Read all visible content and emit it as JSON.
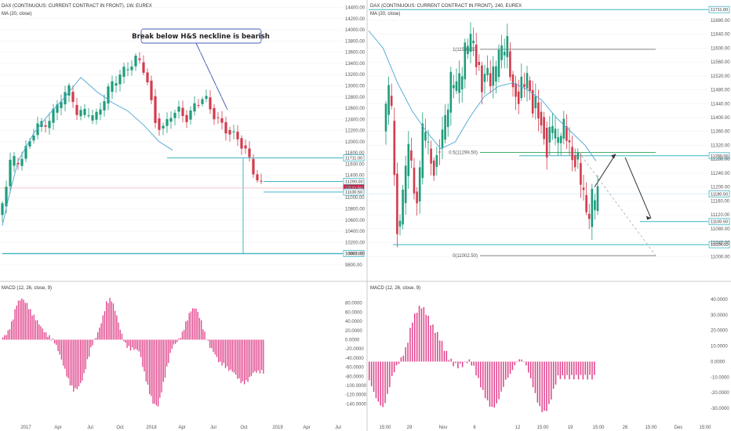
{
  "colors": {
    "up": "#1f9c7c",
    "down": "#d23b4c",
    "ma": "#4da6d6",
    "level": "#3fb5c5",
    "macd": "#e0428a",
    "fib_green": "#2aa35a",
    "fib_gray": "#777777",
    "price_tag": "#d6244a"
  },
  "chart_data": [
    {
      "type": "candlestick",
      "title": "DAX (CONTINUOUS: CURRENT CONTRACT IN FRONT), 1W, EUREX",
      "indicator": "MA (20, close)",
      "ylim": [
        9700,
        14450
      ],
      "y_ticks": [
        9800,
        10000,
        10200,
        10400,
        10600,
        10800,
        11000,
        11200,
        11400,
        11600,
        11800,
        12000,
        12200,
        12400,
        12600,
        12800,
        13000,
        13200,
        13400,
        13600,
        13800,
        14000,
        14200,
        14400
      ],
      "x_ticks": [
        "2017",
        "Apr",
        "Jul",
        "Oct",
        "2018",
        "Apr",
        "Jul",
        "Oct",
        "2019",
        "Apr",
        "Jul"
      ],
      "price_tags": [
        {
          "label": "11711.00",
          "value": 11711,
          "style": "level"
        },
        {
          "label": "11290.00",
          "value": 11290,
          "style": "level"
        },
        {
          "label": "11172.00",
          "value": 11172,
          "style": "price"
        },
        {
          "label": "11100.50",
          "value": 11100.5,
          "style": "level"
        },
        {
          "label": "10000.00",
          "value": 10000,
          "style": "level"
        }
      ],
      "annotation": "Break below H&S neckline is bearish",
      "anchors": [
        [
          10200,
          11300,
          11350,
          11800,
          12150,
          12100,
          12250,
          12450,
          12700,
          12500,
          12200,
          12150,
          12500,
          12650,
          13000,
          13150,
          13400,
          13300,
          13100,
          12300,
          12250,
          12600,
          12500,
          12500,
          12800,
          12700,
          12400,
          12350,
          12150,
          12050,
          11500,
          11200
        ],
        [
          10900,
          11700,
          11650,
          11900,
          12300,
          12300,
          12500,
          12800,
          12950,
          12450,
          12600,
          12400,
          12750,
          13050,
          13200,
          13350,
          13500,
          13250,
          12400,
          12200,
          12500,
          12550,
          12400,
          12700,
          12800,
          12500,
          12300,
          12150,
          12050,
          11800,
          11400,
          11150
        ]
      ],
      "ma": [
        [
          0,
          10500
        ],
        [
          8,
          11000
        ],
        [
          20,
          11650
        ],
        [
          40,
          12150
        ],
        [
          60,
          12500
        ],
        [
          80,
          12800
        ],
        [
          100,
          13150
        ],
        [
          120,
          12900
        ],
        [
          140,
          12700
        ],
        [
          160,
          12550
        ],
        [
          180,
          12300
        ],
        [
          200,
          12000
        ],
        [
          217,
          11850
        ]
      ]
    },
    {
      "type": "histogram",
      "title": "MACD (12, 26, close, 9)",
      "ylim": [
        -170,
        105
      ],
      "y_ticks": [
        80,
        60,
        40,
        20,
        0,
        -20,
        -40,
        -60,
        -80,
        -100,
        -120,
        -140
      ],
      "y_tick_labels": [
        "80.0000",
        "60.0000",
        "40.0000",
        "20.0000",
        "0.0000",
        "-20.0000",
        "-40.0000",
        "-60.0000",
        "-80.0000",
        "-100.0000",
        "-120.0000",
        "-140.0000"
      ],
      "x_ticks": [
        "2017",
        "Apr",
        "Jul",
        "Oct",
        "2018",
        "Apr",
        "Jul",
        "Oct",
        "2019",
        "Apr",
        "Jul"
      ],
      "anchors": [
        [
          0,
          5
        ],
        [
          6,
          15
        ],
        [
          12,
          40
        ],
        [
          18,
          80
        ],
        [
          24,
          90
        ],
        [
          30,
          80
        ],
        [
          36,
          60
        ],
        [
          42,
          45
        ],
        [
          48,
          30
        ],
        [
          54,
          15
        ],
        [
          60,
          5
        ],
        [
          66,
          -5
        ],
        [
          72,
          -30
        ],
        [
          78,
          -60
        ],
        [
          84,
          -90
        ],
        [
          90,
          -110
        ],
        [
          96,
          -105
        ],
        [
          102,
          -85
        ],
        [
          108,
          -45
        ],
        [
          114,
          -10
        ],
        [
          120,
          10
        ],
        [
          126,
          40
        ],
        [
          132,
          80
        ],
        [
          138,
          90
        ],
        [
          144,
          60
        ],
        [
          150,
          20
        ],
        [
          156,
          -10
        ],
        [
          162,
          -20
        ],
        [
          168,
          -20
        ],
        [
          174,
          -25
        ],
        [
          180,
          -70
        ],
        [
          186,
          -110
        ],
        [
          192,
          -140
        ],
        [
          198,
          -145
        ],
        [
          204,
          -100
        ],
        [
          210,
          -55
        ],
        [
          216,
          -15
        ],
        [
          222,
          -5
        ],
        [
          228,
          10
        ],
        [
          234,
          40
        ],
        [
          240,
          65
        ],
        [
          246,
          70
        ],
        [
          252,
          45
        ],
        [
          258,
          10
        ],
        [
          264,
          -15
        ],
        [
          270,
          -30
        ],
        [
          276,
          -50
        ],
        [
          282,
          -55
        ],
        [
          288,
          -65
        ],
        [
          294,
          -70
        ],
        [
          300,
          -85
        ],
        [
          306,
          -95
        ],
        [
          312,
          -90
        ],
        [
          320,
          -70
        ]
      ]
    },
    {
      "type": "candlestick",
      "title": "DAX (CONTINUOUS: CURRENT CONTRACT IN FRONT), 240, EUREX",
      "indicator": "MA (20, close)",
      "ylim": [
        10960,
        11725
      ],
      "y_ticks": [
        11000,
        11040,
        11080,
        11120,
        11160,
        11200,
        11240,
        11280,
        11320,
        11360,
        11400,
        11440,
        11480,
        11520,
        11560,
        11600,
        11640,
        11680
      ],
      "x_ticks": [
        "15:00",
        "29",
        "Nov",
        "6",
        "12",
        "15:00",
        "19",
        "15:00",
        "26",
        "15:00",
        "Dec",
        "15:00"
      ],
      "price_tags": [
        {
          "label": "11711.00",
          "value": 11711,
          "style": "level"
        },
        {
          "label": "11290.00",
          "value": 11290,
          "style": "level"
        },
        {
          "label": "11180.50",
          "value": 11180.5,
          "style": "level"
        },
        {
          "label": "11100.50",
          "value": 11100.5,
          "style": "level"
        },
        {
          "label": "11034.00",
          "value": 11034,
          "style": "level"
        }
      ],
      "fib_levels": [
        {
          "label": "1(11596.50)",
          "value": 11596.5
        },
        {
          "label": "0.5(11299.50)",
          "value": 11299.5
        },
        {
          "label": "0(11002.50)",
          "value": 11002.5
        }
      ],
      "anchors": [
        [
          11280,
          11450,
          11300,
          11060,
          11120,
          11290,
          11200,
          11150,
          11310,
          11290,
          11280,
          11330,
          11300,
          11420,
          11460,
          11420,
          11540,
          11580,
          11600,
          11550,
          11520,
          11510,
          11450,
          11540,
          11560,
          11540,
          11500,
          11470,
          11480,
          11490,
          11420,
          11440,
          11400,
          11340,
          11280,
          11320,
          11360,
          11300,
          11310,
          11200,
          11150,
          11050,
          11100
        ],
        [
          11440,
          11510,
          11070,
          11110,
          11300,
          11300,
          11100,
          11350,
          11380,
          11250,
          11260,
          11350,
          11410,
          11520,
          11500,
          11530,
          11620,
          11640,
          11560,
          11490,
          11540,
          11500,
          11580,
          11600,
          11620,
          11490,
          11440,
          11500,
          11520,
          11430,
          11440,
          11350,
          11300,
          11400,
          11330,
          11380,
          11350,
          11270,
          11280,
          11200,
          11100,
          11180,
          11190
        ]
      ],
      "ma": [
        [
          0,
          11650
        ],
        [
          20,
          11600
        ],
        [
          40,
          11500
        ],
        [
          60,
          11420
        ],
        [
          80,
          11360
        ],
        [
          100,
          11310
        ],
        [
          120,
          11330
        ],
        [
          140,
          11400
        ],
        [
          160,
          11460
        ],
        [
          180,
          11490
        ],
        [
          200,
          11500
        ],
        [
          220,
          11480
        ],
        [
          240,
          11450
        ],
        [
          260,
          11400
        ],
        [
          280,
          11360
        ],
        [
          300,
          11320
        ],
        [
          315,
          11275
        ]
      ]
    },
    {
      "type": "histogram",
      "title": "MACD (12, 26, close, 9)",
      "ylim": [
        -36,
        45
      ],
      "y_ticks": [
        40,
        30,
        20,
        10,
        0,
        -10,
        -20,
        -30
      ],
      "y_tick_labels": [
        "40.0000",
        "30.0000",
        "20.0000",
        "10.0000",
        "0.0000",
        "-10.0000",
        "-20.0000",
        "-30.0000"
      ],
      "x_ticks": [
        "15:00",
        "29",
        "Nov",
        "6",
        "12",
        "15:00",
        "19",
        "15:00",
        "26",
        "15:00",
        "Dec",
        "15:00"
      ],
      "anchors": [
        [
          0,
          -12
        ],
        [
          10,
          -25
        ],
        [
          18,
          -30
        ],
        [
          24,
          -20
        ],
        [
          30,
          -8
        ],
        [
          36,
          -2
        ],
        [
          42,
          3
        ],
        [
          48,
          10
        ],
        [
          54,
          25
        ],
        [
          60,
          32
        ],
        [
          66,
          36
        ],
        [
          72,
          32
        ],
        [
          78,
          25
        ],
        [
          84,
          20
        ],
        [
          90,
          15
        ],
        [
          96,
          8
        ],
        [
          102,
          2
        ],
        [
          108,
          -2
        ],
        [
          114,
          -3
        ],
        [
          120,
          -2
        ],
        [
          126,
          1
        ],
        [
          132,
          -2
        ],
        [
          138,
          -10
        ],
        [
          144,
          -18
        ],
        [
          150,
          -25
        ],
        [
          156,
          -30
        ],
        [
          162,
          -28
        ],
        [
          168,
          -20
        ],
        [
          174,
          -12
        ],
        [
          180,
          -8
        ],
        [
          186,
          -2
        ],
        [
          192,
          2
        ],
        [
          198,
          0
        ],
        [
          204,
          -8
        ],
        [
          210,
          -18
        ],
        [
          216,
          -28
        ],
        [
          222,
          -33
        ],
        [
          228,
          -30
        ],
        [
          234,
          -20
        ],
        [
          240,
          -10
        ]
      ]
    }
  ]
}
